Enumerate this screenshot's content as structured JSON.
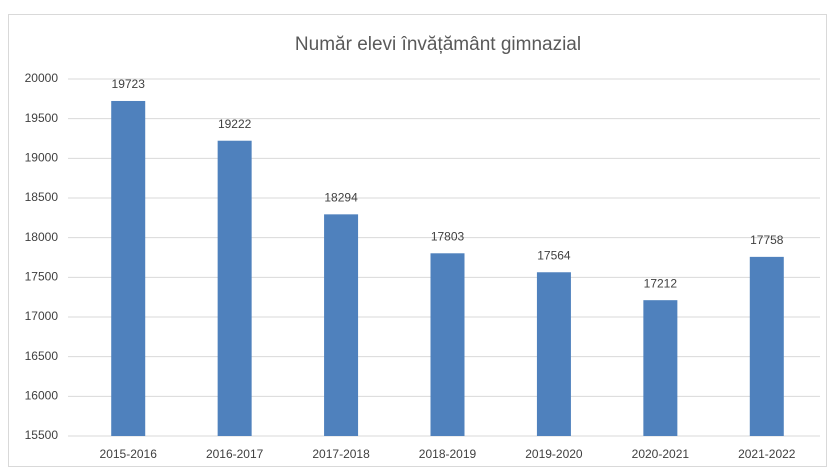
{
  "chart_data": {
    "type": "bar",
    "title": "Număr elevi învățământ gimnazial",
    "categories": [
      "2015-2016",
      "2016-2017",
      "2017-2018",
      "2018-2019",
      "2019-2020",
      "2020-2021",
      "2021-2022"
    ],
    "values": [
      19723,
      19222,
      18294,
      17803,
      17564,
      17212,
      17758
    ],
    "color": "#4f81bd",
    "ylim": [
      15500,
      20000
    ],
    "yticks": [
      15500,
      16000,
      16500,
      17000,
      17500,
      18000,
      18500,
      19000,
      19500,
      20000
    ],
    "grid": true
  }
}
